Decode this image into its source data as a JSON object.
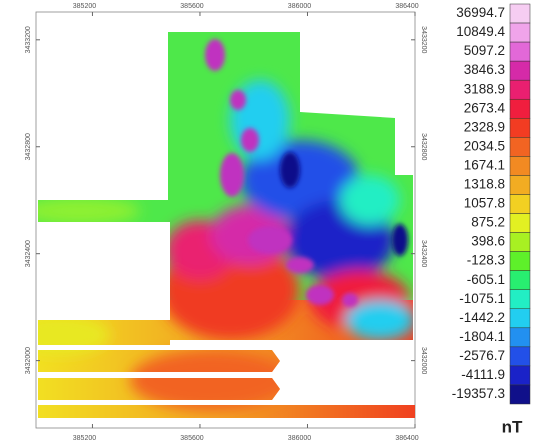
{
  "map": {
    "x_axis": {
      "xlim": [
        384990,
        386400
      ],
      "ticks": [
        385200,
        385600,
        386000,
        386400
      ]
    },
    "y_axis": {
      "ylim": [
        3431748,
        3433304
      ],
      "ticks": [
        3432000,
        3432400,
        3432800,
        3433200
      ]
    },
    "colorbar": {
      "unit": "nT",
      "levels": [
        {
          "value": 36994.7,
          "color": "#f6cdf2"
        },
        {
          "value": 10849.4,
          "color": "#f0a4ea"
        },
        {
          "value": 5097.2,
          "color": "#e268d8"
        },
        {
          "value": 3846.3,
          "color": "#d52aa8"
        },
        {
          "value": 3188.9,
          "color": "#ea1f70"
        },
        {
          "value": 2673.4,
          "color": "#f01e3e"
        },
        {
          "value": 2328.9,
          "color": "#f23c22"
        },
        {
          "value": 2034.5,
          "color": "#f26422"
        },
        {
          "value": 1674.1,
          "color": "#f28a22"
        },
        {
          "value": 1318.8,
          "color": "#f2ac22"
        },
        {
          "value": 1057.8,
          "color": "#f2d022"
        },
        {
          "value": 875.2,
          "color": "#e2f022"
        },
        {
          "value": 398.6,
          "color": "#a8f022"
        },
        {
          "value": -128.3,
          "color": "#5ef02a"
        },
        {
          "value": -605.1,
          "color": "#28ee70"
        },
        {
          "value": -1075.1,
          "color": "#22eec4"
        },
        {
          "value": -1442.2,
          "color": "#22cef0"
        },
        {
          "value": -1804.1,
          "color": "#2290f0"
        },
        {
          "value": -2576.7,
          "color": "#2250e8"
        },
        {
          "value": -4111.9,
          "color": "#1a22c8"
        },
        {
          "value": -19357.3,
          "color": "#10108a"
        }
      ]
    }
  }
}
